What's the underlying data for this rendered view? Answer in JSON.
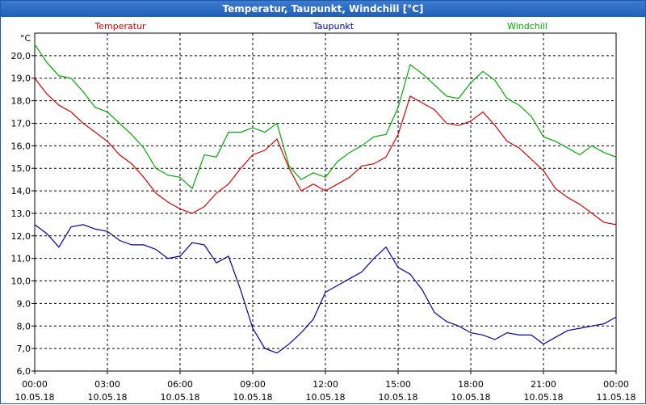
{
  "window": {
    "title": "Temperatur, Taupunkt, Windchill [°C]"
  },
  "chart_data": {
    "type": "line",
    "title": "Temperatur, Taupunkt, Windchill [°C]",
    "ylabel": "°C",
    "ylim": [
      6.0,
      21.0
    ],
    "y_ticks": [
      "6,0",
      "7,0",
      "8,0",
      "9,0",
      "10,0",
      "11,0",
      "12,0",
      "13,0",
      "14,0",
      "15,0",
      "16,0",
      "17,0",
      "18,0",
      "19,0",
      "20,0"
    ],
    "xlim": [
      0,
      24
    ],
    "x_ticks": [
      {
        "time": "00:00",
        "date": "10.05.18"
      },
      {
        "time": "03:00",
        "date": "10.05.18"
      },
      {
        "time": "06:00",
        "date": "10.05.18"
      },
      {
        "time": "09:00",
        "date": "10.05.18"
      },
      {
        "time": "12:00",
        "date": "10.05.18"
      },
      {
        "time": "15:00",
        "date": "10.05.18"
      },
      {
        "time": "18:00",
        "date": "10.05.18"
      },
      {
        "time": "21:00",
        "date": "10.05.18"
      },
      {
        "time": "00:00",
        "date": "11.05.18"
      }
    ],
    "grid": true,
    "legend_position": "top",
    "series": [
      {
        "name": "Temperatur",
        "color": "#dd0000",
        "x": [
          0,
          0.5,
          1,
          1.5,
          2,
          2.5,
          3,
          3.5,
          4,
          4.5,
          5,
          5.5,
          6,
          6.5,
          7,
          7.5,
          8,
          8.5,
          9,
          9.5,
          10,
          10.5,
          11,
          11.5,
          12,
          12.5,
          13,
          13.5,
          14,
          14.5,
          15,
          15.5,
          16,
          16.5,
          17,
          17.5,
          18,
          18.5,
          19,
          19.5,
          20,
          20.5,
          21,
          21.5,
          22,
          22.5,
          23,
          23.5,
          24
        ],
        "values": [
          19.0,
          18.3,
          17.8,
          17.5,
          17.0,
          16.6,
          16.2,
          15.6,
          15.2,
          14.6,
          13.9,
          13.5,
          13.2,
          13.0,
          13.3,
          13.9,
          14.3,
          15.0,
          15.6,
          15.8,
          16.3,
          15.0,
          14.0,
          14.3,
          14.0,
          14.3,
          14.6,
          15.1,
          15.2,
          15.5,
          16.5,
          18.2,
          17.9,
          17.6,
          17.0,
          16.9,
          17.1,
          17.5,
          16.9,
          16.2,
          15.9,
          15.4,
          14.9,
          14.1,
          13.7,
          13.4,
          13.0,
          12.6,
          12.5
        ]
      },
      {
        "name": "Taupunkt",
        "color": "#0000aa",
        "x": [
          0,
          0.5,
          1,
          1.5,
          2,
          2.5,
          3,
          3.5,
          4,
          4.5,
          5,
          5.5,
          6,
          6.5,
          7,
          7.5,
          8,
          8.5,
          9,
          9.5,
          10,
          10.5,
          11,
          11.5,
          12,
          12.5,
          13,
          13.5,
          14,
          14.5,
          15,
          15.5,
          16,
          16.5,
          17,
          17.5,
          18,
          18.5,
          19,
          19.5,
          20,
          20.5,
          21,
          21.5,
          22,
          22.5,
          23,
          23.5,
          24
        ],
        "values": [
          12.5,
          12.1,
          11.5,
          12.4,
          12.5,
          12.3,
          12.2,
          11.8,
          11.6,
          11.6,
          11.4,
          11.0,
          11.1,
          11.7,
          11.6,
          10.8,
          11.1,
          9.6,
          7.9,
          7.0,
          6.8,
          7.2,
          7.7,
          8.3,
          9.5,
          9.8,
          10.1,
          10.4,
          11.0,
          11.5,
          10.6,
          10.3,
          9.6,
          8.6,
          8.2,
          8.0,
          7.7,
          7.6,
          7.4,
          7.7,
          7.6,
          7.6,
          7.2,
          7.5,
          7.8,
          7.9,
          8.0,
          8.1,
          8.4
        ]
      },
      {
        "name": "Windchill",
        "color": "#00aa00",
        "x": [
          0,
          0.5,
          1,
          1.5,
          2,
          2.5,
          3,
          3.5,
          4,
          4.5,
          5,
          5.5,
          6,
          6.5,
          7,
          7.5,
          8,
          8.5,
          9,
          9.5,
          10,
          10.5,
          11,
          11.5,
          12,
          12.5,
          13,
          13.5,
          14,
          14.5,
          15,
          15.5,
          16,
          16.5,
          17,
          17.5,
          18,
          18.5,
          19,
          19.5,
          20,
          20.5,
          21,
          21.5,
          22,
          22.5,
          23,
          23.5,
          24
        ],
        "values": [
          20.5,
          19.7,
          19.1,
          19.0,
          18.4,
          17.7,
          17.5,
          17.0,
          16.5,
          15.9,
          15.0,
          14.7,
          14.6,
          14.1,
          15.6,
          15.5,
          16.6,
          16.6,
          16.8,
          16.6,
          17.0,
          15.1,
          14.5,
          14.8,
          14.6,
          15.3,
          15.7,
          16.0,
          16.4,
          16.5,
          17.7,
          19.6,
          19.2,
          18.7,
          18.2,
          18.1,
          18.8,
          19.3,
          18.9,
          18.1,
          17.8,
          17.3,
          16.4,
          16.2,
          15.9,
          15.6,
          16.0,
          15.7,
          15.5
        ]
      }
    ]
  }
}
